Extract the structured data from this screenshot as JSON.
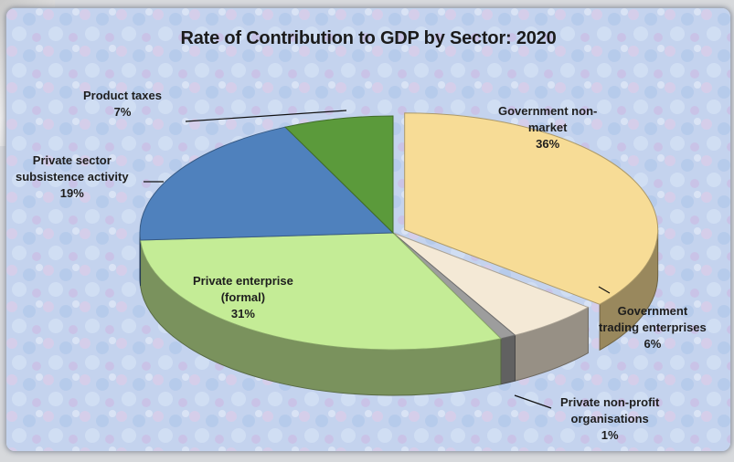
{
  "chart_data": {
    "type": "pie",
    "title": "Rate of Contribution to GDP by Sector: 2020",
    "slices": [
      {
        "name": "Government non-market",
        "value": 36,
        "label_lines": [
          "Government non-",
          "market"
        ],
        "pct_label": "36%",
        "color": "#f7dc96"
      },
      {
        "name": "Government trading enterprises",
        "value": 6,
        "label_lines": [
          "Government",
          "trading enterprises"
        ],
        "pct_label": "6%",
        "color": "#f4e9d6"
      },
      {
        "name": "Private non-profit organisations",
        "value": 1,
        "label_lines": [
          "Private non-profit",
          "organisations"
        ],
        "pct_label": "1%",
        "color": "#9d9d9d"
      },
      {
        "name": "Private enterprise (formal)",
        "value": 31,
        "label_lines": [
          "Private enterprise",
          "(formal)"
        ],
        "pct_label": "31%",
        "color": "#c4ec96"
      },
      {
        "name": "Private sector subsistence activity",
        "value": 19,
        "label_lines": [
          "Private sector",
          "subsistence activity"
        ],
        "pct_label": "19%",
        "color": "#4f81bd"
      },
      {
        "name": "Product taxes",
        "value": 7,
        "label_lines": [
          "Product taxes"
        ],
        "pct_label": "7%",
        "color": "#5b9a3b"
      }
    ],
    "legend": "none",
    "style": "3d-pie"
  }
}
